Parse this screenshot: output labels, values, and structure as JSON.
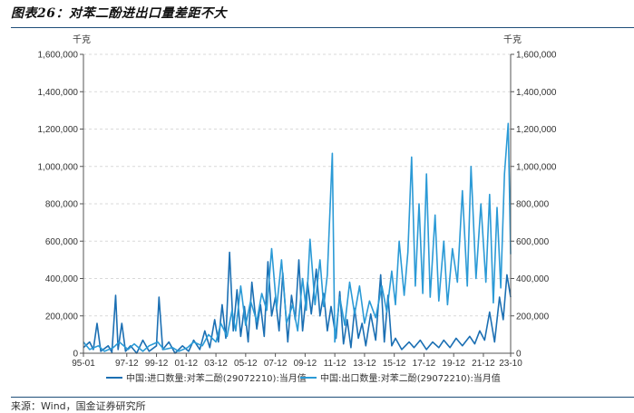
{
  "figure_title": "图表26：对苯二酚进出口量差距不大",
  "source": "来源：Wind，国金证券研究所",
  "colors": {
    "import": "#1b6fb3",
    "export": "#2b9ad6",
    "axis": "#555555",
    "grid": "#d9d9d9",
    "rule": "#1f4e79"
  },
  "chart_data": {
    "type": "line",
    "left_unit": "千克",
    "right_unit": "千克",
    "ylim": [
      0,
      1600000
    ],
    "yticks": [
      0,
      200000,
      400000,
      600000,
      800000,
      1000000,
      1200000,
      1400000,
      1600000
    ],
    "ytick_labels": [
      "0",
      "200,000",
      "400,000",
      "600,000",
      "800,000",
      "1,000,000",
      "1,200,000",
      "1,400,000",
      "1,600,000"
    ],
    "xlim": [
      "1995-01",
      "2023-10"
    ],
    "x_tick_labels": [
      "95-01",
      "97-12",
      "99-12",
      "01-12",
      "03-12",
      "05-12",
      "07-12",
      "09-12",
      "11-12",
      "13-12",
      "15-12",
      "17-12",
      "19-12",
      "21-12",
      "23-10"
    ],
    "grid": "horizontal dashed",
    "legend_position": "bottom",
    "series": [
      {
        "name": "中国:进口数量:对苯二酚(29072210):当月值",
        "color": "#1b6fb3",
        "points": [
          [
            "1995-01",
            30000
          ],
          [
            "1995-06",
            60000
          ],
          [
            "1995-09",
            20000
          ],
          [
            "1995-12",
            160000
          ],
          [
            "1996-03",
            10000
          ],
          [
            "1996-09",
            40000
          ],
          [
            "1996-12",
            5000
          ],
          [
            "1997-03",
            310000
          ],
          [
            "1997-05",
            20000
          ],
          [
            "1997-08",
            160000
          ],
          [
            "1997-11",
            10000
          ],
          [
            "1998-03",
            40000
          ],
          [
            "1998-08",
            0
          ],
          [
            "1999-01",
            70000
          ],
          [
            "1999-06",
            10000
          ],
          [
            "1999-12",
            40000
          ],
          [
            "2000-02",
            300000
          ],
          [
            "2000-05",
            20000
          ],
          [
            "2000-10",
            60000
          ],
          [
            "2001-03",
            0
          ],
          [
            "2001-09",
            40000
          ],
          [
            "2002-02",
            10000
          ],
          [
            "2002-06",
            70000
          ],
          [
            "2002-11",
            20000
          ],
          [
            "2003-03",
            120000
          ],
          [
            "2003-07",
            30000
          ],
          [
            "2003-11",
            180000
          ],
          [
            "2004-02",
            60000
          ],
          [
            "2004-05",
            260000
          ],
          [
            "2004-08",
            80000
          ],
          [
            "2004-11",
            540000
          ],
          [
            "2005-02",
            120000
          ],
          [
            "2005-05",
            340000
          ],
          [
            "2005-08",
            90000
          ],
          [
            "2005-11",
            250000
          ],
          [
            "2006-02",
            60000
          ],
          [
            "2006-05",
            380000
          ],
          [
            "2006-09",
            130000
          ],
          [
            "2006-12",
            260000
          ],
          [
            "2007-03",
            90000
          ],
          [
            "2007-06",
            490000
          ],
          [
            "2007-09",
            200000
          ],
          [
            "2007-12",
            300000
          ],
          [
            "2008-03",
            120000
          ],
          [
            "2008-06",
            430000
          ],
          [
            "2008-10",
            60000
          ],
          [
            "2009-01",
            310000
          ],
          [
            "2009-04",
            180000
          ],
          [
            "2009-07",
            500000
          ],
          [
            "2009-10",
            120000
          ],
          [
            "2010-02",
            380000
          ],
          [
            "2010-05",
            210000
          ],
          [
            "2010-09",
            450000
          ],
          [
            "2010-12",
            200000
          ],
          [
            "2011-03",
            320000
          ],
          [
            "2011-06",
            120000
          ],
          [
            "2011-09",
            250000
          ],
          [
            "2012-01",
            80000
          ],
          [
            "2012-04",
            330000
          ],
          [
            "2012-07",
            50000
          ],
          [
            "2012-10",
            180000
          ],
          [
            "2013-01",
            30000
          ],
          [
            "2013-04",
            240000
          ],
          [
            "2013-07",
            80000
          ],
          [
            "2013-10",
            160000
          ],
          [
            "2014-01",
            40000
          ],
          [
            "2014-05",
            210000
          ],
          [
            "2014-09",
            70000
          ],
          [
            "2015-01",
            420000
          ],
          [
            "2015-04",
            60000
          ],
          [
            "2015-07",
            310000
          ],
          [
            "2015-10",
            40000
          ],
          [
            "2016-01",
            80000
          ],
          [
            "2016-06",
            20000
          ],
          [
            "2016-12",
            60000
          ],
          [
            "2017-04",
            30000
          ],
          [
            "2017-09",
            70000
          ],
          [
            "2018-02",
            20000
          ],
          [
            "2018-07",
            60000
          ],
          [
            "2018-12",
            30000
          ],
          [
            "2019-04",
            70000
          ],
          [
            "2019-09",
            30000
          ],
          [
            "2020-02",
            80000
          ],
          [
            "2020-07",
            40000
          ],
          [
            "2021-01",
            90000
          ],
          [
            "2021-05",
            50000
          ],
          [
            "2021-09",
            120000
          ],
          [
            "2022-01",
            70000
          ],
          [
            "2022-05",
            220000
          ],
          [
            "2022-09",
            60000
          ],
          [
            "2023-01",
            300000
          ],
          [
            "2023-04",
            180000
          ],
          [
            "2023-07",
            420000
          ],
          [
            "2023-10",
            300000
          ]
        ]
      },
      {
        "name": "中国:出口数量:对苯二酚(29072210):当月值",
        "color": "#2b9ad6",
        "points": [
          [
            "1995-01",
            60000
          ],
          [
            "1995-06",
            20000
          ],
          [
            "1996-01",
            40000
          ],
          [
            "1996-06",
            10000
          ],
          [
            "1997-01",
            30000
          ],
          [
            "1997-06",
            60000
          ],
          [
            "1998-01",
            20000
          ],
          [
            "1998-06",
            50000
          ],
          [
            "1999-01",
            10000
          ],
          [
            "1999-06",
            40000
          ],
          [
            "2000-01",
            60000
          ],
          [
            "2000-06",
            20000
          ],
          [
            "2001-01",
            30000
          ],
          [
            "2001-06",
            10000
          ],
          [
            "2002-01",
            30000
          ],
          [
            "2002-06",
            60000
          ],
          [
            "2003-01",
            40000
          ],
          [
            "2003-06",
            100000
          ],
          [
            "2003-12",
            60000
          ],
          [
            "2004-04",
            160000
          ],
          [
            "2004-09",
            90000
          ],
          [
            "2005-01",
            230000
          ],
          [
            "2005-04",
            120000
          ],
          [
            "2005-08",
            360000
          ],
          [
            "2005-12",
            150000
          ],
          [
            "2006-04",
            280000
          ],
          [
            "2006-09",
            170000
          ],
          [
            "2007-01",
            320000
          ],
          [
            "2007-05",
            230000
          ],
          [
            "2007-09",
            560000
          ],
          [
            "2008-01",
            240000
          ],
          [
            "2008-05",
            500000
          ],
          [
            "2008-09",
            160000
          ],
          [
            "2009-02",
            260000
          ],
          [
            "2009-06",
            120000
          ],
          [
            "2009-10",
            400000
          ],
          [
            "2010-01",
            230000
          ],
          [
            "2010-04",
            610000
          ],
          [
            "2010-08",
            260000
          ],
          [
            "2010-12",
            500000
          ],
          [
            "2011-03",
            250000
          ],
          [
            "2011-06",
            420000
          ],
          [
            "2011-10",
            1070000
          ],
          [
            "2011-12",
            60000
          ],
          [
            "2012-04",
            300000
          ],
          [
            "2012-08",
            150000
          ],
          [
            "2012-12",
            380000
          ],
          [
            "2013-04",
            210000
          ],
          [
            "2013-08",
            360000
          ],
          [
            "2013-12",
            160000
          ],
          [
            "2014-04",
            280000
          ],
          [
            "2014-09",
            190000
          ],
          [
            "2015-02",
            360000
          ],
          [
            "2015-06",
            220000
          ],
          [
            "2015-10",
            440000
          ],
          [
            "2016-01",
            260000
          ],
          [
            "2016-04",
            600000
          ],
          [
            "2016-08",
            310000
          ],
          [
            "2016-11",
            540000
          ],
          [
            "2017-02",
            1050000
          ],
          [
            "2017-05",
            360000
          ],
          [
            "2017-08",
            800000
          ],
          [
            "2017-11",
            320000
          ],
          [
            "2018-02",
            960000
          ],
          [
            "2018-05",
            300000
          ],
          [
            "2018-09",
            740000
          ],
          [
            "2018-12",
            280000
          ],
          [
            "2019-04",
            600000
          ],
          [
            "2019-07",
            260000
          ],
          [
            "2019-11",
            560000
          ],
          [
            "2020-03",
            380000
          ],
          [
            "2020-07",
            870000
          ],
          [
            "2020-11",
            360000
          ],
          [
            "2021-02",
            1000000
          ],
          [
            "2021-06",
            400000
          ],
          [
            "2021-10",
            800000
          ],
          [
            "2022-02",
            380000
          ],
          [
            "2022-05",
            850000
          ],
          [
            "2022-08",
            270000
          ],
          [
            "2022-11",
            780000
          ],
          [
            "2023-02",
            350000
          ],
          [
            "2023-05",
            960000
          ],
          [
            "2023-08",
            1230000
          ],
          [
            "2023-10",
            530000
          ]
        ]
      }
    ]
  }
}
